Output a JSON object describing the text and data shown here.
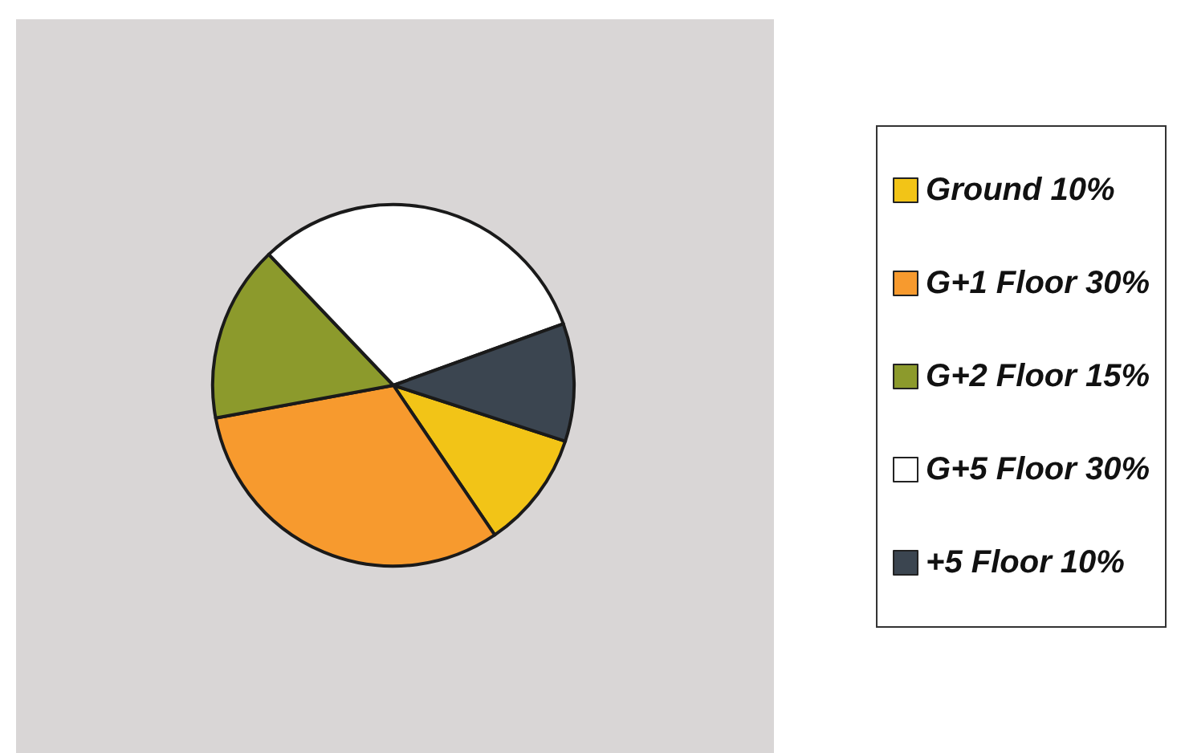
{
  "chart_data": {
    "type": "pie",
    "categories": [
      "Ground 10%",
      "G+1 Floor 30%",
      "G+2 Floor 15%",
      "G+5 Floor 30%",
      "+5 Floor 10%"
    ],
    "values": [
      10,
      30,
      15,
      30,
      10
    ],
    "colors": [
      "#f2c417",
      "#f79a2e",
      "#8c9a2c",
      "#ffffff",
      "#3b4550"
    ],
    "legend": "right"
  }
}
